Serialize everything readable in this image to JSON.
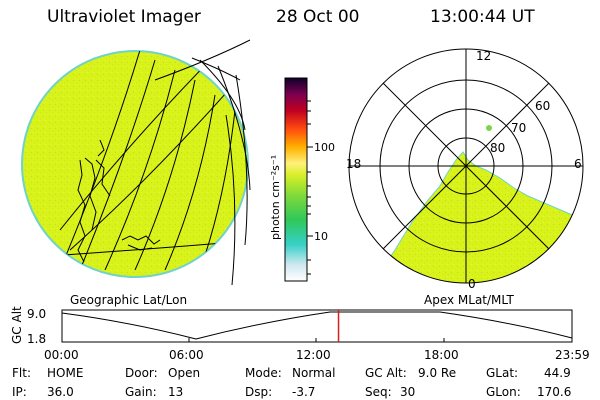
{
  "header": {
    "title": "Ultraviolet Imager",
    "date": "28 Oct 00",
    "time": "13:00:44 UT"
  },
  "colors": {
    "uv_fill": "#d8f21a",
    "uv_speckle": "#b8e02a",
    "limb": "#6fd3c8",
    "marker": "#d81e1e"
  },
  "colorbar": {
    "unit_label": "photon cm⁻²s⁻¹",
    "ticks": [
      "100",
      "10"
    ],
    "scale": "log"
  },
  "geo_panel": {
    "label": "Geographic Lat/Lon"
  },
  "polar_panel": {
    "label": "Apex MLat/MLT",
    "mlt_labels": [
      "12",
      "18",
      "6",
      "0"
    ],
    "lat_labels": [
      "60",
      "70",
      "80"
    ]
  },
  "altitude_plot": {
    "axis_title": "GC Alt",
    "ytick_top": "9.0",
    "ytick_bottom": "1.8",
    "x_ticks": [
      "00:00",
      "06:00",
      "12:00",
      "18:00",
      "23:59"
    ],
    "current_time_fraction": 0.5422
  },
  "info": {
    "flt_label": "Flt:",
    "flt_value": "HOME",
    "ip_label": "IP:",
    "ip_value": "36.0",
    "door_label": "Door:",
    "door_value": "Open",
    "gain_label": "Gain:",
    "gain_value": "13",
    "mode_label": "Mode:",
    "mode_value": "Normal",
    "dsp_label": "Dsp:",
    "dsp_value": "-3.7",
    "gcalt_label": "GC Alt:",
    "gcalt_value": "9.0 Re",
    "seq_label": "Seq:",
    "seq_value": "30",
    "glat_label": "GLat:",
    "glat_value": "44.9",
    "glon_label": "GLon:",
    "glon_value": "170.6"
  }
}
